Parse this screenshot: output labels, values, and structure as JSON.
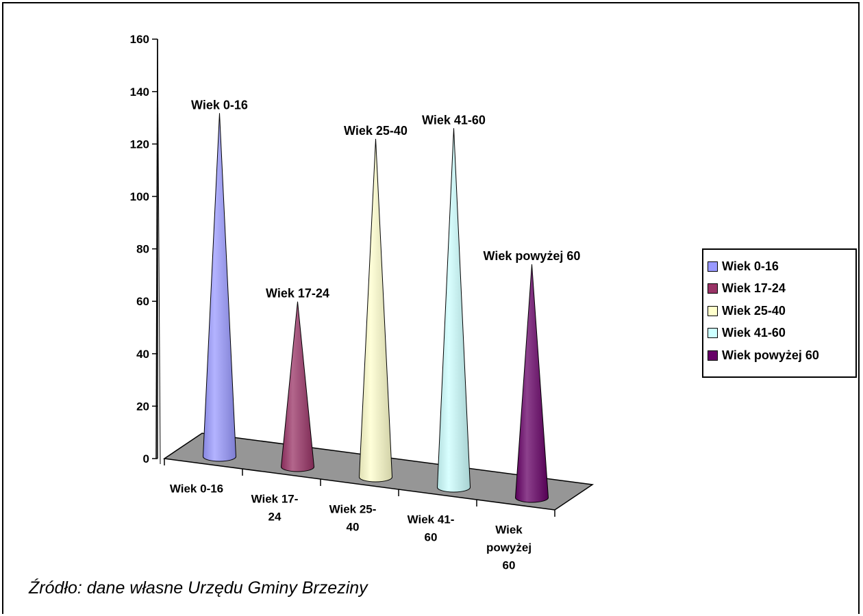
{
  "chart_data": {
    "type": "bar",
    "categories": [
      "Wiek 0-16",
      "Wiek 17-24",
      "Wiek 25-40",
      "Wiek 41-60",
      "Wiek powyżej 60"
    ],
    "category_labels": [
      [
        "Wiek 0-16"
      ],
      [
        "Wiek 17-",
        "24"
      ],
      [
        "Wiek 25-",
        "40"
      ],
      [
        "Wiek 41-",
        "60"
      ],
      [
        "Wiek",
        "powyżej",
        "60"
      ]
    ],
    "values": [
      131,
      63,
      129,
      137,
      89
    ],
    "yticks": [
      0,
      20,
      40,
      60,
      80,
      100,
      120,
      140,
      160
    ],
    "ylim": [
      0,
      160
    ],
    "grid": false,
    "legend_position": "right",
    "series": [
      {
        "name": "Wiek 0-16",
        "color": "#9999FF"
      },
      {
        "name": "Wiek 17-24",
        "color": "#993366"
      },
      {
        "name": "Wiek 25-40",
        "color": "#FFFFCC"
      },
      {
        "name": "Wiek 41-60",
        "color": "#CCFFFF"
      },
      {
        "name": "Wiek powyżej 60",
        "color": "#660066"
      }
    ],
    "floor_color": "#969696"
  },
  "source_note": "Źródło: dane własne Urzędu Gminy Brzeziny"
}
